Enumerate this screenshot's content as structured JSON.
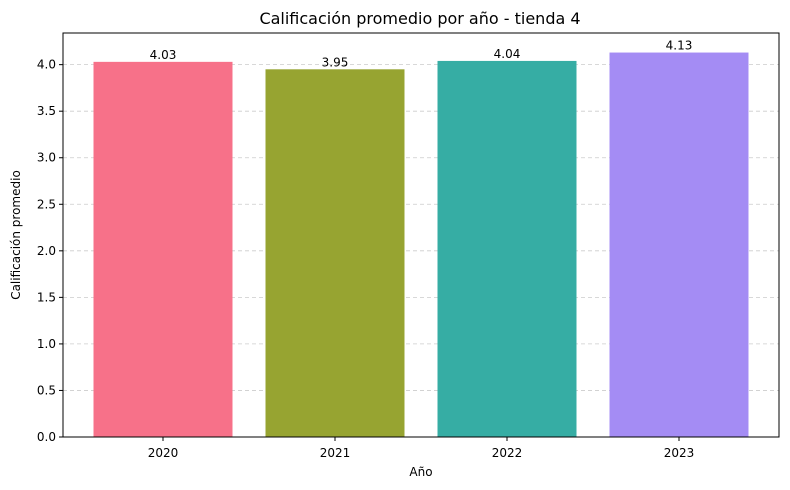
{
  "chart_data": {
    "type": "bar",
    "title": "Calificación promedio por año - tienda 4",
    "xlabel": "Año",
    "ylabel": "Calificación promedio",
    "categories": [
      "2020",
      "2021",
      "2022",
      "2023"
    ],
    "values": [
      4.03,
      3.95,
      4.04,
      4.13
    ],
    "data_labels": [
      "4.03",
      "3.95",
      "4.04",
      "4.13"
    ],
    "colors": [
      "#f77189",
      "#97a431",
      "#36ada4",
      "#a48cf4"
    ],
    "ylim": [
      0,
      4.34
    ],
    "yticks": [
      0.0,
      0.5,
      1.0,
      1.5,
      2.0,
      2.5,
      3.0,
      3.5,
      4.0
    ],
    "ytick_labels": [
      "0.0",
      "0.5",
      "1.0",
      "1.5",
      "2.0",
      "2.5",
      "3.0",
      "3.5",
      "4.0"
    ],
    "grid": "y-dashed",
    "legend": "none"
  }
}
